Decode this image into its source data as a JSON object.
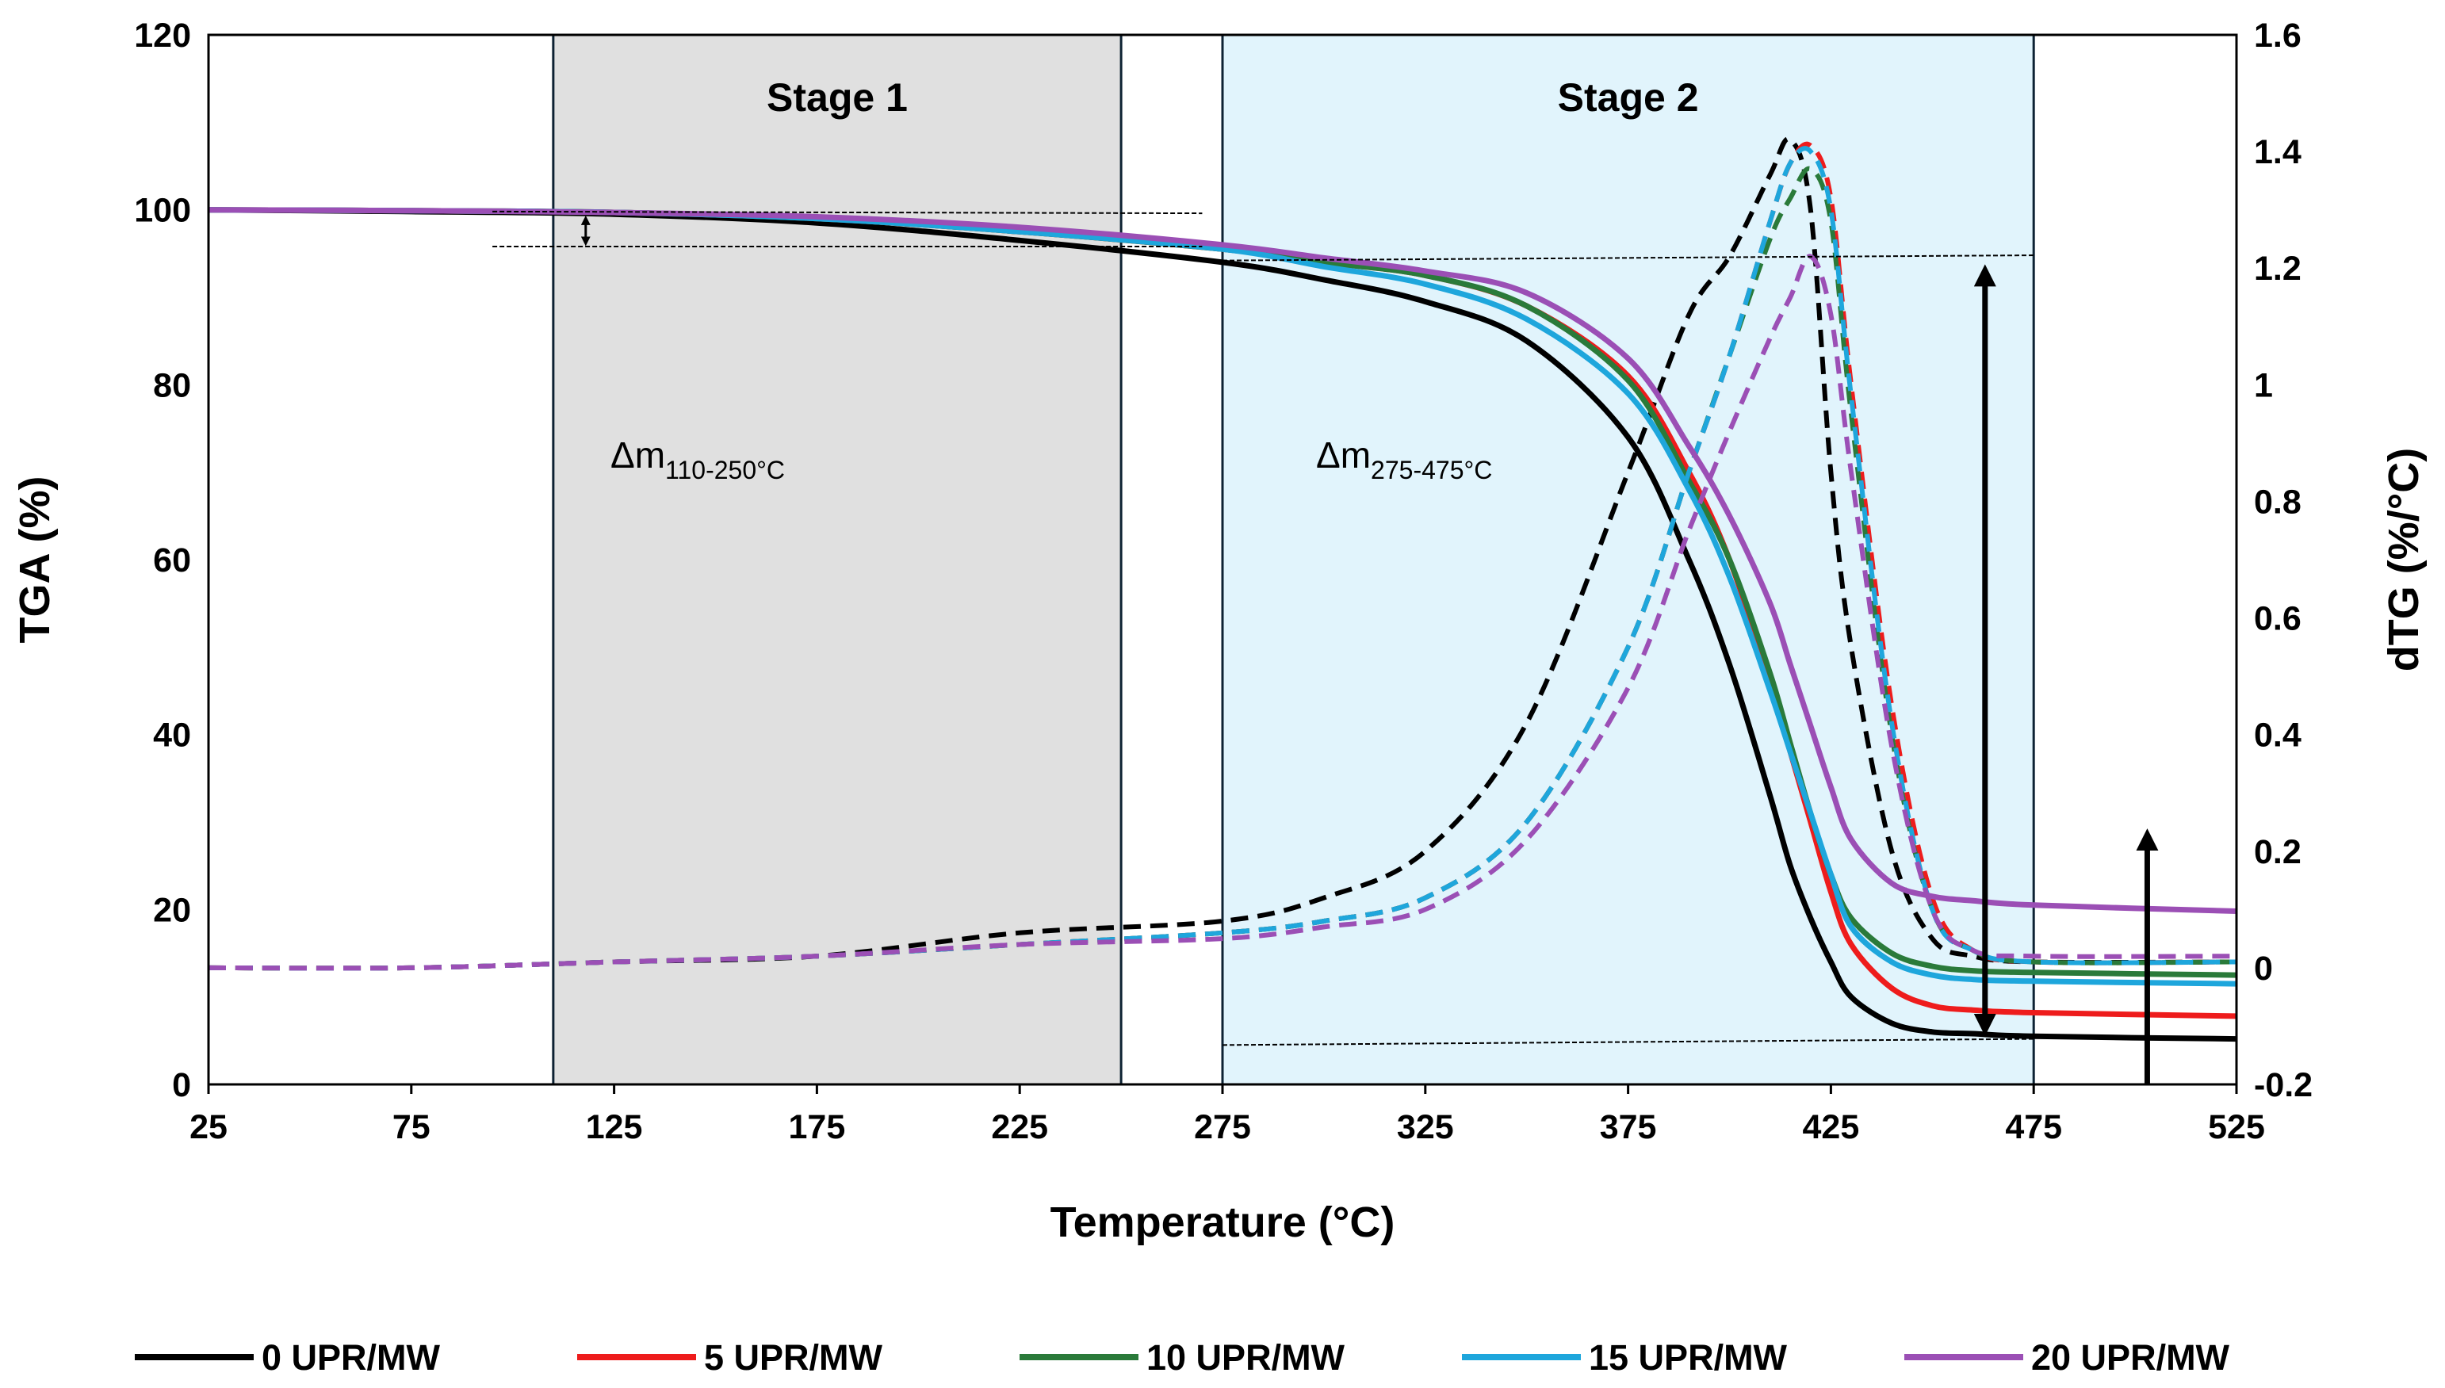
{
  "chart_data": {
    "type": "line",
    "x": [
      25,
      75,
      125,
      175,
      225,
      275,
      300,
      325,
      350,
      375,
      390,
      400,
      410,
      415,
      420,
      425,
      430,
      440,
      450,
      460,
      475,
      525
    ],
    "xlabel": "Temperature (°C)",
    "ylabel_left": "TGA (%)",
    "ylabel_right": "dTG (%/°C)",
    "xlim": [
      25,
      525
    ],
    "ylim_left": [
      0,
      120
    ],
    "ylim_right": [
      -0.2,
      1.6
    ],
    "x_ticks": [
      "25",
      "75",
      "125",
      "175",
      "225",
      "275",
      "325",
      "375",
      "425",
      "475",
      "525"
    ],
    "y_ticks_left": [
      "0",
      "20",
      "40",
      "60",
      "80",
      "100",
      "120"
    ],
    "y_ticks_right": [
      "-0.2",
      "0",
      "0.2",
      "0.4",
      "0.6",
      "0.8",
      "1",
      "1.2",
      "1.4",
      "1.6"
    ],
    "regions": [
      {
        "label": "Stage 1",
        "from": 110,
        "to": 250,
        "color": "#e0e0e0",
        "annotation": "Δm",
        "sub": "110-250°C"
      },
      {
        "label": "Stage 2",
        "from": 275,
        "to": 475,
        "color": "#e1f4fc",
        "annotation": "Δm",
        "sub": "275-475°C"
      }
    ],
    "series": [
      {
        "name": "0 UPR/MW",
        "color": "#000000",
        "tga": [
          100,
          99.8,
          99.5,
          98.5,
          96.5,
          94,
          92,
          89.5,
          85,
          74,
          60,
          48,
          33,
          25,
          19,
          14,
          10,
          7,
          6,
          5.8,
          5.5,
          5.2
        ],
        "dtg": [
          0,
          0,
          0.01,
          0.02,
          0.06,
          0.08,
          0.12,
          0.2,
          0.42,
          0.85,
          1.12,
          1.22,
          1.36,
          1.42,
          1.3,
          0.85,
          0.55,
          0.2,
          0.05,
          0.02,
          0.01,
          0.01
        ]
      },
      {
        "name": "5 UPR/MW",
        "color": "#ee1c1c",
        "tga": [
          100,
          99.9,
          99.7,
          99,
          97.5,
          95.5,
          94,
          92.5,
          89,
          81,
          70,
          60,
          46,
          38,
          30,
          22,
          16,
          11,
          9,
          8.5,
          8.2,
          7.8
        ],
        "dtg": [
          0,
          0,
          0.01,
          0.02,
          0.04,
          0.06,
          0.08,
          0.12,
          0.25,
          0.55,
          0.85,
          1.05,
          1.28,
          1.38,
          1.41,
          1.32,
          1.0,
          0.45,
          0.12,
          0.03,
          0.01,
          0.01
        ]
      },
      {
        "name": "10 UPR/MW",
        "color": "#2a7a3a",
        "tga": [
          100,
          99.9,
          99.7,
          99,
          97.5,
          95.5,
          94,
          92.5,
          89,
          80.5,
          69,
          60,
          47,
          39,
          31,
          24,
          19,
          15,
          13.5,
          13,
          12.8,
          12.5
        ],
        "dtg": [
          0,
          0,
          0.01,
          0.02,
          0.04,
          0.06,
          0.08,
          0.12,
          0.25,
          0.55,
          0.85,
          1.05,
          1.25,
          1.32,
          1.37,
          1.28,
          0.95,
          0.4,
          0.1,
          0.03,
          0.01,
          0.01
        ]
      },
      {
        "name": "15 UPR/MW",
        "color": "#1ea6dc",
        "tga": [
          100,
          99.9,
          99.7,
          99,
          97.5,
          95.5,
          93.5,
          91.5,
          87.5,
          79,
          68,
          58,
          45,
          38,
          31,
          24,
          18,
          14,
          12.5,
          12,
          11.8,
          11.5
        ],
        "dtg": [
          0,
          0,
          0.01,
          0.02,
          0.04,
          0.06,
          0.08,
          0.12,
          0.25,
          0.55,
          0.85,
          1.05,
          1.28,
          1.38,
          1.4,
          1.3,
          0.98,
          0.42,
          0.1,
          0.03,
          0.01,
          0.01
        ]
      },
      {
        "name": "20 UPR/MW",
        "color": "#9b4fb5",
        "tga": [
          100,
          99.9,
          99.7,
          99.2,
          98,
          96,
          94.5,
          93,
          90.5,
          83,
          73,
          65,
          55,
          48,
          41,
          34,
          28,
          23,
          21.5,
          21,
          20.5,
          19.8
        ],
        "dtg": [
          0,
          0,
          0.01,
          0.02,
          0.04,
          0.05,
          0.07,
          0.1,
          0.22,
          0.48,
          0.75,
          0.92,
          1.08,
          1.15,
          1.22,
          1.12,
          0.85,
          0.38,
          0.1,
          0.03,
          0.02,
          0.02
        ]
      }
    ]
  }
}
